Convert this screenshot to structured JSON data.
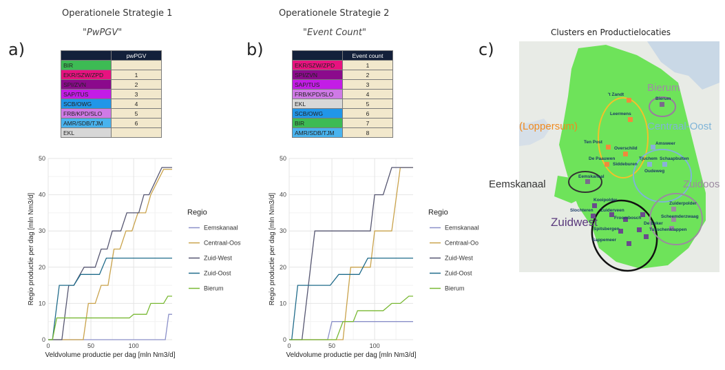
{
  "panel_a": {
    "letter": "a)",
    "title": "Operationele Strategie 1",
    "subtitle": "\"PwPGV\"",
    "table": {
      "header": "pwPGV",
      "rows": [
        {
          "name": "BIR",
          "value": "",
          "color": "#3dbb54"
        },
        {
          "name": "EKR/SZW/ZPD",
          "value": "1",
          "color": "#e8127f"
        },
        {
          "name": "SPI/ZVN",
          "value": "2",
          "color": "#8b0a8c"
        },
        {
          "name": "SAP/TUS",
          "value": "3",
          "color": "#c31ce6"
        },
        {
          "name": "SCB/OWG",
          "value": "4",
          "color": "#2196e8"
        },
        {
          "name": "FRB/KPD/SLO",
          "value": "5",
          "color": "#cf7ae6"
        },
        {
          "name": "AMR/SDB/TJM",
          "value": "6",
          "color": "#49b3ee"
        },
        {
          "name": "EKL",
          "value": "",
          "color": "#d7d7d7"
        }
      ]
    }
  },
  "panel_b": {
    "letter": "b)",
    "title": "Operationele Strategie 2",
    "subtitle": "\"Event Count\"",
    "table": {
      "header": "Event count",
      "rows": [
        {
          "name": "EKR/SZW/ZPD",
          "value": "1",
          "color": "#e8127f"
        },
        {
          "name": "SPI/ZVN",
          "value": "2",
          "color": "#8b0a8c"
        },
        {
          "name": "SAP/TUS",
          "value": "3",
          "color": "#c31ce6"
        },
        {
          "name": "FRB/KPD/SLO",
          "value": "4",
          "color": "#cf7ae6"
        },
        {
          "name": "EKL",
          "value": "5",
          "color": "#d7d7d7"
        },
        {
          "name": "SCB/OWG",
          "value": "6",
          "color": "#2196e8"
        },
        {
          "name": "BIR",
          "value": "7",
          "color": "#3dbb54"
        },
        {
          "name": "AMR/SDB/TJM",
          "value": "8",
          "color": "#49b3ee"
        }
      ]
    }
  },
  "panel_c": {
    "letter": "c)",
    "title": "Clusters en Productielocaties",
    "map_labels": {
      "bierum": "Bierum",
      "loppersum": "(Loppersum)",
      "centraal_oost": "Centraal-Oost",
      "eemskanaal": "Eemskanaal",
      "zuidoost": "Zuidoost",
      "zuidwest": "Zuidwest"
    },
    "locations": [
      "'t Zandt",
      "Bierum",
      "Leermens",
      "Ten Post",
      "Overschild",
      "Amsweer",
      "De Paauwen",
      "Siddeburen",
      "Tjuchem",
      "Schaapbulten",
      "Oudeweg",
      "Eemskanaal",
      "Kooipolder",
      "Slochteren",
      "Zuiderveen",
      "Froombosch",
      "Scheemderzwaag",
      "Zuiderpolder",
      "Spitsbergen",
      "De Eeker",
      "Tusschenklappen",
      "Sappemeer"
    ]
  },
  "chart_data": [
    {
      "type": "line",
      "xlabel": "Veldvolume productie per dag [mln Nm3/d]",
      "ylabel": "Regio productie per dag [mln Nm3/d]",
      "xlim": [
        0,
        145
      ],
      "ylim": [
        0,
        50
      ],
      "xticks": [
        0,
        50,
        100
      ],
      "yticks": [
        0,
        10,
        20,
        30,
        40,
        50
      ],
      "grid": true,
      "legend_title": "Regio",
      "legend_position": "right",
      "series": [
        {
          "name": "Eemskanaal",
          "color": "#8a8fc8",
          "x": [
            0,
            137,
            141,
            145
          ],
          "y": [
            0,
            0,
            7,
            7
          ]
        },
        {
          "name": "Centraal-Oost",
          "color": "#c9a24a",
          "x": [
            0,
            41,
            47,
            55,
            62,
            70,
            77,
            84,
            91,
            98,
            105,
            114,
            120,
            135,
            145
          ],
          "y": [
            0,
            0,
            10,
            10,
            15,
            15,
            25,
            25,
            30,
            30,
            35,
            35,
            40,
            47,
            47
          ]
        },
        {
          "name": "Zuid-West",
          "color": "#555570",
          "x": [
            0,
            16,
            24,
            30,
            42,
            55,
            62,
            69,
            75,
            85,
            92,
            106,
            112,
            118,
            133,
            145
          ],
          "y": [
            0,
            0,
            15,
            15,
            20,
            20,
            25,
            25,
            30,
            30,
            35,
            35,
            40,
            40,
            47.5,
            47.5
          ]
        },
        {
          "name": "Zuid-Oost",
          "color": "#1f6b8a",
          "x": [
            0,
            5,
            13,
            30,
            38,
            60,
            68,
            100,
            145
          ],
          "y": [
            0,
            0,
            15,
            15,
            18,
            18,
            22.5,
            22.5,
            22.5
          ]
        },
        {
          "name": "Bierum",
          "color": "#78b832",
          "x": [
            0,
            5,
            10,
            95,
            100,
            115,
            120,
            135,
            140,
            145
          ],
          "y": [
            0,
            0,
            6,
            6,
            7,
            7,
            10,
            10,
            12,
            12
          ]
        }
      ]
    },
    {
      "type": "line",
      "xlabel": "Veldvolume productie per dag [mln Nm3/d]",
      "ylabel": "Regio productie per dag [mln Nm3/d]",
      "xlim": [
        0,
        145
      ],
      "ylim": [
        0,
        50
      ],
      "xticks": [
        0,
        50,
        100
      ],
      "yticks": [
        0,
        10,
        20,
        30,
        40,
        50
      ],
      "grid": true,
      "legend_title": "Regio",
      "legend_position": "right",
      "series": [
        {
          "name": "Eemskanaal",
          "color": "#8a8fc8",
          "x": [
            0,
            45,
            50,
            145
          ],
          "y": [
            0,
            0,
            5,
            5
          ]
        },
        {
          "name": "Centraal-Oost",
          "color": "#c9a24a",
          "x": [
            0,
            63,
            72,
            95,
            100,
            120,
            130,
            145
          ],
          "y": [
            0,
            0,
            20,
            20,
            30,
            30,
            47.5,
            47.5
          ]
        },
        {
          "name": "Zuid-West",
          "color": "#555570",
          "x": [
            0,
            15,
            30,
            95,
            100,
            110,
            120,
            130,
            145
          ],
          "y": [
            0,
            0,
            30,
            30,
            40,
            40,
            47.5,
            47.5,
            47.5
          ]
        },
        {
          "name": "Zuid-Oost",
          "color": "#1f6b8a",
          "x": [
            0,
            3,
            10,
            48,
            58,
            82,
            92,
            145
          ],
          "y": [
            0,
            0,
            15,
            15,
            18,
            18,
            22.5,
            22.5
          ]
        },
        {
          "name": "Bierum",
          "color": "#78b832",
          "x": [
            0,
            55,
            63,
            75,
            80,
            110,
            120,
            130,
            140,
            145
          ],
          "y": [
            0,
            0,
            5,
            5,
            8,
            8,
            10,
            10,
            12,
            12
          ]
        }
      ]
    }
  ]
}
